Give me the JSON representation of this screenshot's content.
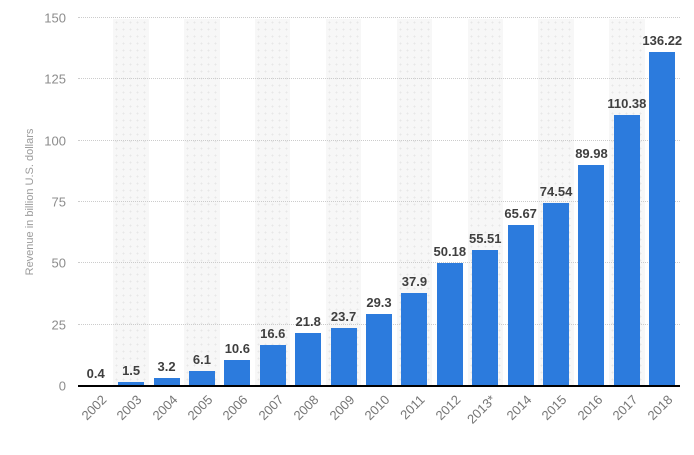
{
  "chart_data": {
    "type": "bar",
    "title": "",
    "xlabel": "",
    "ylabel": "Revenue in billion U.S. dollars",
    "categories": [
      "2002",
      "2003",
      "2004",
      "2005",
      "2006",
      "2007",
      "2008",
      "2009",
      "2010",
      "2011",
      "2012",
      "2013*",
      "2014",
      "2015",
      "2016",
      "2017",
      "2018"
    ],
    "values": [
      0.4,
      1.5,
      3.2,
      6.1,
      10.6,
      16.6,
      21.8,
      23.7,
      29.3,
      37.9,
      50.18,
      55.51,
      65.67,
      74.54,
      89.98,
      110.38,
      136.22
    ],
    "data_labels": [
      "0.4",
      "1.5",
      "3.2",
      "6.1",
      "10.6",
      "16.6",
      "21.8",
      "23.7",
      "29.3",
      "37.9",
      "50.18",
      "55.51",
      "65.67",
      "74.54",
      "89.98",
      "110.38",
      "136.22"
    ],
    "ylim": [
      0,
      150
    ],
    "y_ticks": [
      0,
      25,
      50,
      75,
      100,
      125,
      150
    ],
    "y_tick_labels": [
      "0",
      "25",
      "50",
      "75",
      "100",
      "125",
      "150"
    ],
    "grid": "horizontal dotted lines on, vertical off",
    "legend": "none",
    "plot_bands": "alternating shaded dotted-texture vertical bands behind odd columns",
    "striped_column_indices": [
      1,
      3,
      5,
      7,
      9,
      11,
      13,
      15
    ],
    "colors": {
      "bar": "#2c7bdd",
      "data_label": "#3f3f3f",
      "axis_line": "#000000",
      "gridline": "#cccccc",
      "tick_label": "#8c8c8c",
      "x_label": "#757575",
      "y_title": "#9b9b9b",
      "band_fill": "#f7f7f7",
      "background": "#ffffff"
    }
  }
}
